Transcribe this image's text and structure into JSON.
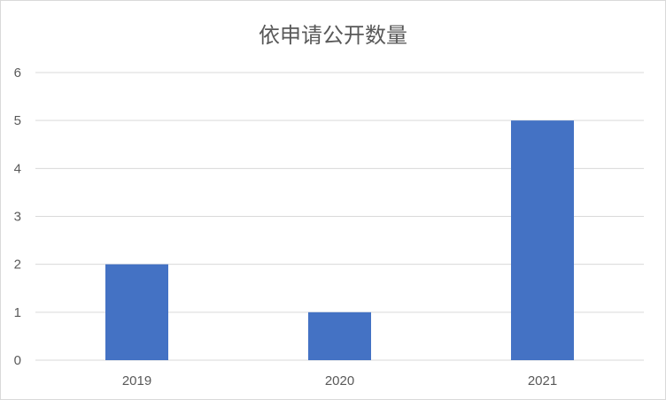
{
  "chart_data": {
    "type": "bar",
    "title": "依申请公开数量",
    "categories": [
      "2019",
      "2020",
      "2021"
    ],
    "values": [
      2,
      1,
      5
    ],
    "ylim": [
      0,
      6
    ],
    "yticks": [
      "0",
      "1",
      "2",
      "3",
      "4",
      "5",
      "6"
    ],
    "grid": true,
    "legend": "none",
    "bar_color": "#4472C4",
    "xlabel": "",
    "ylabel": ""
  }
}
